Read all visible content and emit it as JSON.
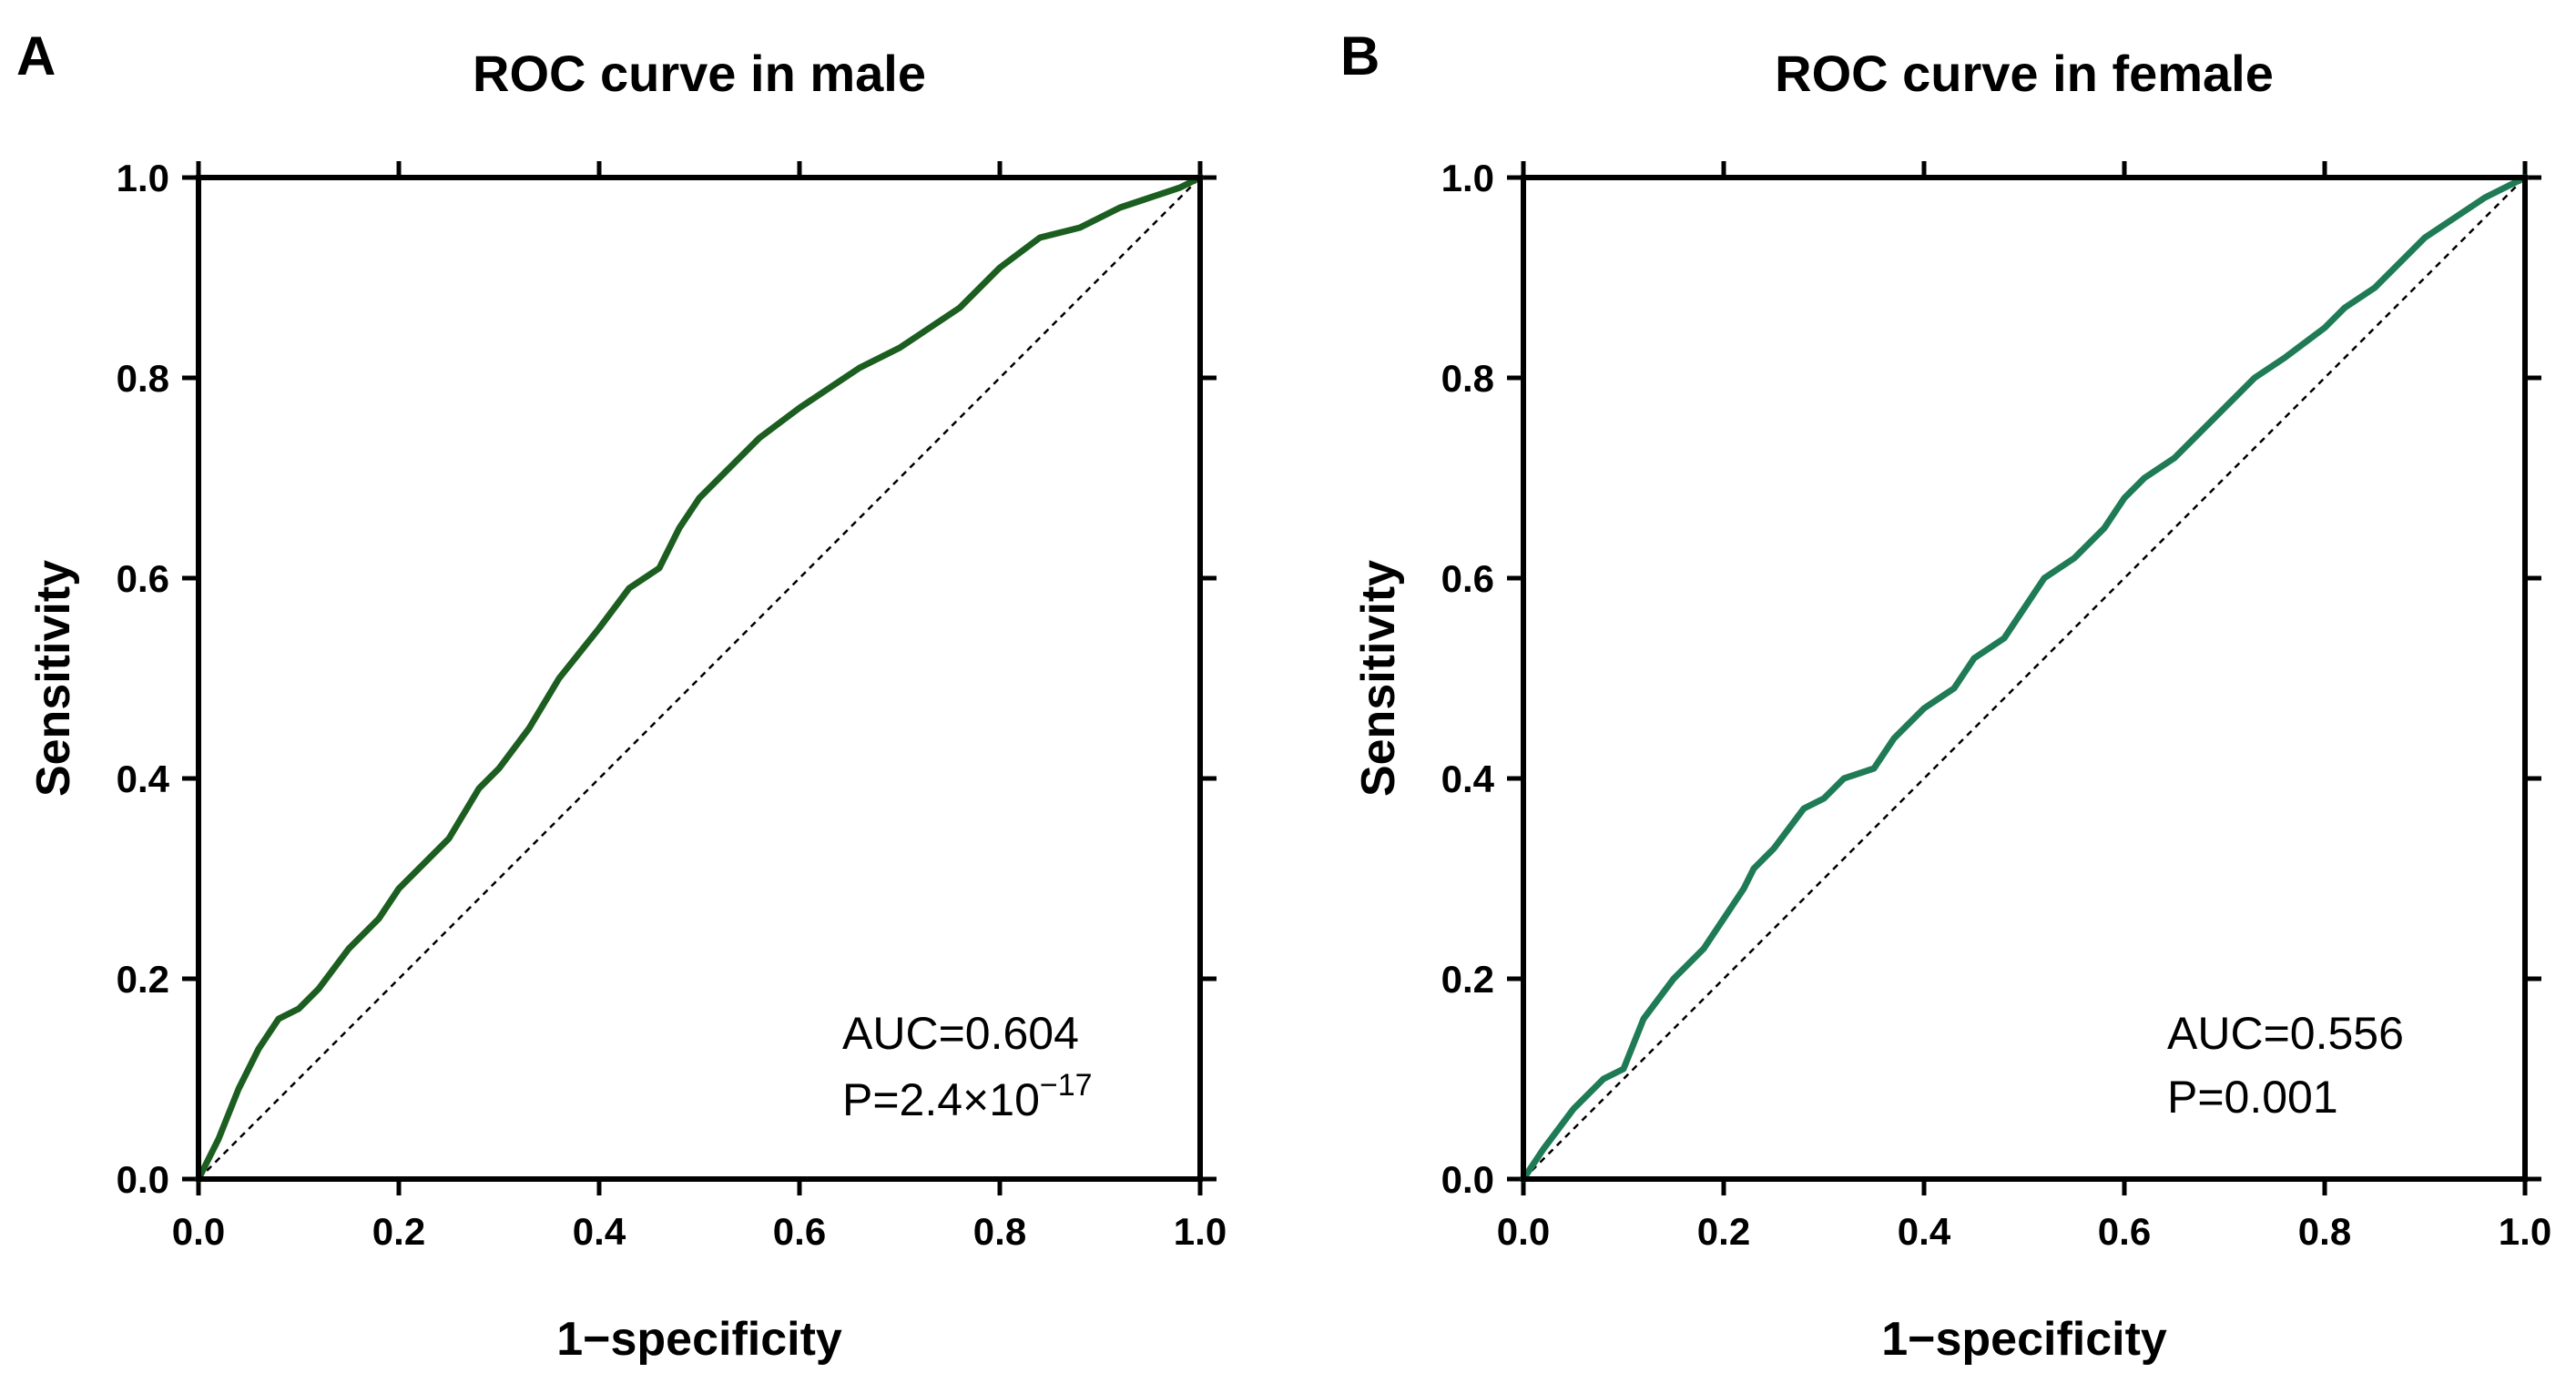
{
  "chart_data": [
    {
      "type": "line",
      "panel_label": "A",
      "title": "ROC curve in male",
      "xlabel": "1−specificity",
      "ylabel": "Sensitivity",
      "xlim": [
        0,
        1
      ],
      "ylim": [
        0,
        1
      ],
      "xticks": [
        "0.0",
        "0.2",
        "0.4",
        "0.6",
        "0.8",
        "1.0"
      ],
      "yticks": [
        "0.0",
        "0.2",
        "0.4",
        "0.6",
        "0.8",
        "1.0"
      ],
      "grid": false,
      "line_color": "#1b5e20",
      "annotation": {
        "auc": "AUC=0.604",
        "p_base": "P=2.4×10",
        "p_exp": "−17"
      },
      "series": [
        {
          "name": "ROC",
          "x": [
            0.0,
            0.02,
            0.04,
            0.06,
            0.08,
            0.1,
            0.12,
            0.15,
            0.18,
            0.2,
            0.22,
            0.25,
            0.28,
            0.3,
            0.33,
            0.36,
            0.4,
            0.43,
            0.46,
            0.48,
            0.5,
            0.53,
            0.56,
            0.6,
            0.63,
            0.66,
            0.7,
            0.73,
            0.76,
            0.8,
            0.84,
            0.88,
            0.92,
            0.95,
            0.98,
            1.0
          ],
          "y": [
            0.0,
            0.04,
            0.09,
            0.13,
            0.16,
            0.17,
            0.19,
            0.23,
            0.26,
            0.29,
            0.31,
            0.34,
            0.39,
            0.41,
            0.45,
            0.5,
            0.55,
            0.59,
            0.61,
            0.65,
            0.68,
            0.71,
            0.74,
            0.77,
            0.79,
            0.81,
            0.83,
            0.85,
            0.87,
            0.91,
            0.94,
            0.95,
            0.97,
            0.98,
            0.99,
            1.0
          ]
        },
        {
          "name": "Reference",
          "x": [
            0,
            1
          ],
          "y": [
            0,
            1
          ]
        }
      ]
    },
    {
      "type": "line",
      "panel_label": "B",
      "title": "ROC curve in female",
      "xlabel": "1−specificity",
      "ylabel": "Sensitivity",
      "xlim": [
        0,
        1
      ],
      "ylim": [
        0,
        1
      ],
      "xticks": [
        "0.0",
        "0.2",
        "0.4",
        "0.6",
        "0.8",
        "1.0"
      ],
      "yticks": [
        "0.0",
        "0.2",
        "0.4",
        "0.6",
        "0.8",
        "1.0"
      ],
      "grid": false,
      "line_color": "#1e7b55",
      "annotation": {
        "auc": "AUC=0.556",
        "p_base": "P=0.001",
        "p_exp": ""
      },
      "series": [
        {
          "name": "ROC",
          "x": [
            0.0,
            0.02,
            0.05,
            0.08,
            0.1,
            0.12,
            0.15,
            0.18,
            0.2,
            0.22,
            0.23,
            0.25,
            0.28,
            0.3,
            0.32,
            0.35,
            0.37,
            0.4,
            0.43,
            0.45,
            0.48,
            0.5,
            0.52,
            0.55,
            0.58,
            0.6,
            0.62,
            0.65,
            0.68,
            0.7,
            0.73,
            0.76,
            0.8,
            0.82,
            0.85,
            0.88,
            0.9,
            0.93,
            0.96,
            0.98,
            1.0
          ],
          "y": [
            0.0,
            0.03,
            0.07,
            0.1,
            0.11,
            0.16,
            0.2,
            0.23,
            0.26,
            0.29,
            0.31,
            0.33,
            0.37,
            0.38,
            0.4,
            0.41,
            0.44,
            0.47,
            0.49,
            0.52,
            0.54,
            0.57,
            0.6,
            0.62,
            0.65,
            0.68,
            0.7,
            0.72,
            0.75,
            0.77,
            0.8,
            0.82,
            0.85,
            0.87,
            0.89,
            0.92,
            0.94,
            0.96,
            0.98,
            0.99,
            1.0
          ]
        },
        {
          "name": "Reference",
          "x": [
            0,
            1
          ],
          "y": [
            0,
            1
          ]
        }
      ]
    }
  ]
}
